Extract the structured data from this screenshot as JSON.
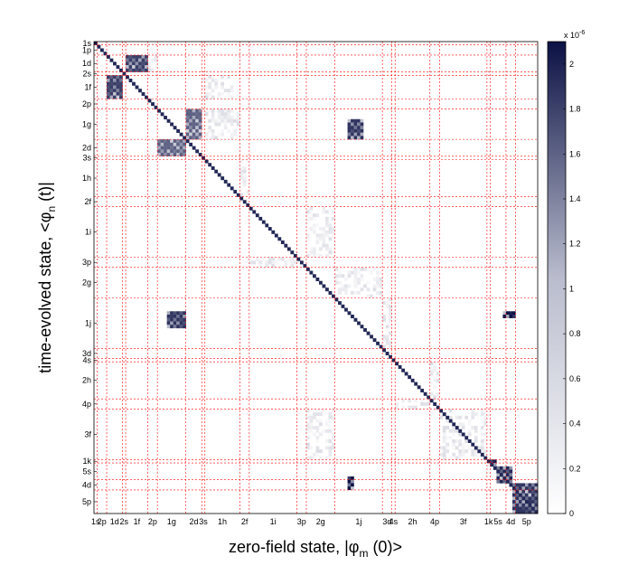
{
  "chart_data": {
    "type": "heatmap",
    "xlabel": "zero-field state, |φ",
    "xlabel_sub": "m",
    "xlabel_tail": " (0)>",
    "ylabel": "time-evolved state, <φ",
    "ylabel_sub": "n",
    "ylabel_tail": " (t)|",
    "x_tick_labels": [
      "1s",
      "2p",
      "1d",
      "2s",
      "1f",
      "2p",
      "1g",
      "2d",
      "3s",
      "1h",
      "2f",
      "1i",
      "3p",
      "2g",
      "1j",
      "3d",
      "4s",
      "2h",
      "4p",
      "3f",
      "1k",
      "5s",
      "4d",
      "5p"
    ],
    "y_tick_labels": [
      "1s",
      "1p",
      "1d",
      "2s",
      "1f",
      "2p",
      "1g",
      "2d",
      "3s",
      "1h",
      "2f",
      "1i",
      "3p",
      "2g",
      "1j",
      "3d",
      "4s",
      "2h",
      "4p",
      "3f",
      "1k",
      "5s",
      "4d",
      "5p"
    ],
    "x_boundaries": [
      0,
      1,
      4,
      9,
      10,
      17,
      20,
      29,
      34,
      35,
      46,
      49,
      64,
      67,
      76,
      91,
      94,
      95,
      106,
      109,
      124,
      125,
      130,
      133
    ],
    "n_states": 140,
    "blocks": [
      {
        "x0": 10,
        "x1": 17,
        "y0": 4,
        "y1": 9,
        "value": 1.7
      },
      {
        "x0": 4,
        "x1": 9,
        "y0": 10,
        "y1": 17,
        "value": 1.7
      },
      {
        "x0": 29,
        "x1": 34,
        "y0": 20,
        "y1": 29,
        "value": 1.4
      },
      {
        "x0": 20,
        "x1": 29,
        "y0": 29,
        "y1": 34,
        "value": 1.4
      },
      {
        "x0": 80,
        "x1": 85,
        "y0": 23,
        "y1": 29,
        "value": 1.8
      },
      {
        "x0": 23,
        "x1": 29,
        "y0": 80,
        "y1": 85,
        "value": 1.8
      },
      {
        "x0": 129,
        "x1": 133,
        "y0": 80,
        "y1": 82,
        "value": 2.1
      },
      {
        "x0": 80,
        "x1": 82,
        "y0": 129,
        "y1": 133,
        "value": 2.1
      },
      {
        "x0": 125,
        "x1": 127,
        "y0": 124,
        "y1": 126,
        "value": 2.0
      },
      {
        "x0": 127,
        "x1": 132,
        "y0": 126,
        "y1": 131,
        "value": 1.9
      },
      {
        "x0": 132,
        "x1": 140,
        "y0": 131,
        "y1": 140,
        "value": 1.8
      }
    ],
    "faint_blocks": [
      {
        "x0": 17,
        "x1": 20,
        "y0": 4,
        "y1": 9
      },
      {
        "x0": 34,
        "x1": 44,
        "y0": 10,
        "y1": 17
      },
      {
        "x0": 46,
        "x1": 49,
        "y0": 35,
        "y1": 46
      },
      {
        "x0": 64,
        "x1": 67,
        "y0": 46,
        "y1": 49
      },
      {
        "x0": 49,
        "x1": 64,
        "y0": 64,
        "y1": 67
      },
      {
        "x0": 67,
        "x1": 76,
        "y0": 49,
        "y1": 64
      },
      {
        "x0": 76,
        "x1": 91,
        "y0": 67,
        "y1": 76
      },
      {
        "x0": 91,
        "x1": 94,
        "y0": 76,
        "y1": 91
      },
      {
        "x0": 106,
        "x1": 109,
        "y0": 95,
        "y1": 106
      },
      {
        "x0": 95,
        "x1": 106,
        "y0": 106,
        "y1": 109
      },
      {
        "x0": 109,
        "x1": 124,
        "y0": 109,
        "y1": 124
      },
      {
        "x0": 35,
        "x1": 46,
        "y0": 20,
        "y1": 29
      },
      {
        "x0": 67,
        "x1": 76,
        "y0": 109,
        "y1": 124
      }
    ],
    "diagonal_value": 1.9,
    "colorbar": {
      "min": 0,
      "max": 2.1,
      "ticks": [
        0,
        0.2,
        0.4,
        0.6,
        0.8,
        1,
        1.2,
        1.4,
        1.6,
        1.8,
        2
      ],
      "tick_labels": [
        "0",
        "0.2",
        "0.4",
        "0.6",
        "0.8",
        "1",
        "1.2",
        "1.4",
        "1.6",
        "1.8",
        "2"
      ],
      "scale_label": "x 10",
      "scale_exp": "-6",
      "low_color": "#ffffff",
      "high_color": "#0b1144"
    },
    "grid": true,
    "grid_color": "#ff0000"
  }
}
